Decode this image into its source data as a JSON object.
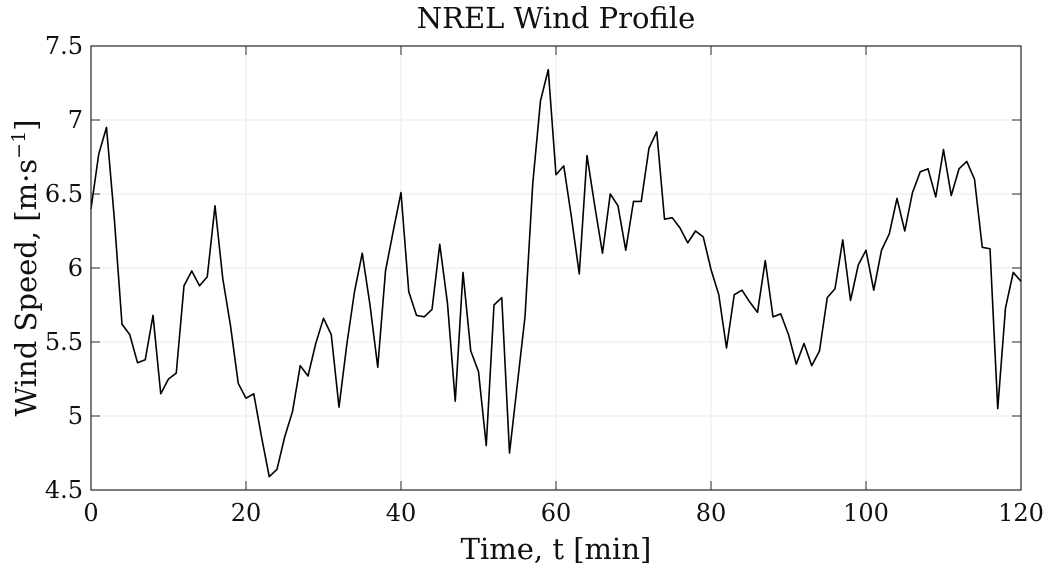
{
  "chart_data": {
    "type": "line",
    "title": "NREL Wind Profile",
    "xlabel": "Time, t [min]",
    "ylabel_main": "Wind Speed, [m·s",
    "ylabel_sup": "−1",
    "ylabel_end": "]",
    "xlim": [
      0,
      120
    ],
    "ylim": [
      4.5,
      7.5
    ],
    "xticks": [
      0,
      20,
      40,
      60,
      80,
      100,
      120
    ],
    "yticks": [
      4.5,
      5,
      5.5,
      6,
      6.5,
      7,
      7.5
    ],
    "xtick_labels": [
      "0",
      "20",
      "40",
      "60",
      "80",
      "100",
      "120"
    ],
    "ytick_labels": [
      "4.5",
      "5",
      "5.5",
      "6",
      "6.5",
      "7",
      "7.5"
    ],
    "grid": true,
    "line_color": "#000000",
    "series": [
      {
        "x": [
          0,
          1,
          2,
          3,
          4,
          5,
          6,
          7,
          8,
          9,
          10,
          11,
          12,
          13,
          14,
          15,
          16,
          17,
          18,
          19,
          20,
          21,
          22,
          23,
          24,
          25,
          26,
          27,
          28,
          29,
          30,
          31,
          32,
          33,
          34,
          35,
          36,
          37,
          38,
          39,
          40,
          41,
          42,
          43,
          44,
          45,
          46,
          47,
          48,
          49,
          50,
          51,
          52,
          53,
          54,
          55,
          56,
          57,
          58,
          59,
          60,
          61,
          62,
          63,
          64,
          65,
          66,
          67,
          68,
          69,
          70,
          71,
          72,
          73,
          74,
          75,
          76,
          77,
          78,
          79,
          80,
          81,
          82,
          83,
          84,
          85,
          86,
          87,
          88,
          89,
          90,
          91,
          92,
          93,
          94,
          95,
          96,
          97,
          98,
          99,
          100,
          101,
          102,
          103,
          104,
          105,
          106,
          107,
          108,
          109,
          110,
          111,
          112,
          113,
          114,
          115,
          116,
          117,
          118,
          119,
          120
        ],
        "y": [
          6.4,
          6.77,
          6.95,
          6.34,
          5.62,
          5.55,
          5.36,
          5.38,
          5.68,
          5.15,
          5.25,
          5.29,
          5.88,
          5.98,
          5.88,
          5.94,
          6.42,
          5.93,
          5.61,
          5.22,
          5.12,
          5.15,
          4.86,
          4.59,
          4.64,
          4.86,
          5.03,
          5.34,
          5.27,
          5.49,
          5.66,
          5.55,
          5.06,
          5.48,
          5.84,
          6.1,
          5.75,
          5.33,
          5.98,
          6.25,
          6.51,
          5.84,
          5.68,
          5.67,
          5.72,
          6.16,
          5.76,
          5.1,
          5.97,
          5.44,
          5.3,
          4.8,
          5.75,
          5.8,
          4.75,
          5.21,
          5.67,
          6.57,
          7.13,
          7.34,
          6.63,
          6.69,
          6.34,
          5.96,
          6.76,
          6.42,
          6.1,
          6.5,
          6.42,
          6.12,
          6.45,
          6.45,
          6.81,
          6.92,
          6.33,
          6.34,
          6.27,
          6.17,
          6.25,
          6.21,
          5.99,
          5.82,
          5.46,
          5.82,
          5.85,
          5.77,
          5.7,
          6.05,
          5.67,
          5.69,
          5.55,
          5.35,
          5.49,
          5.34,
          5.44,
          5.8,
          5.86,
          6.19,
          5.78,
          6.02,
          6.12,
          5.85,
          6.12,
          6.23,
          6.47,
          6.25,
          6.51,
          6.65,
          6.67,
          6.48,
          6.8,
          6.49,
          6.67,
          6.72,
          6.6,
          6.14,
          6.13,
          5.05,
          5.73,
          5.97,
          5.91
        ]
      }
    ]
  }
}
